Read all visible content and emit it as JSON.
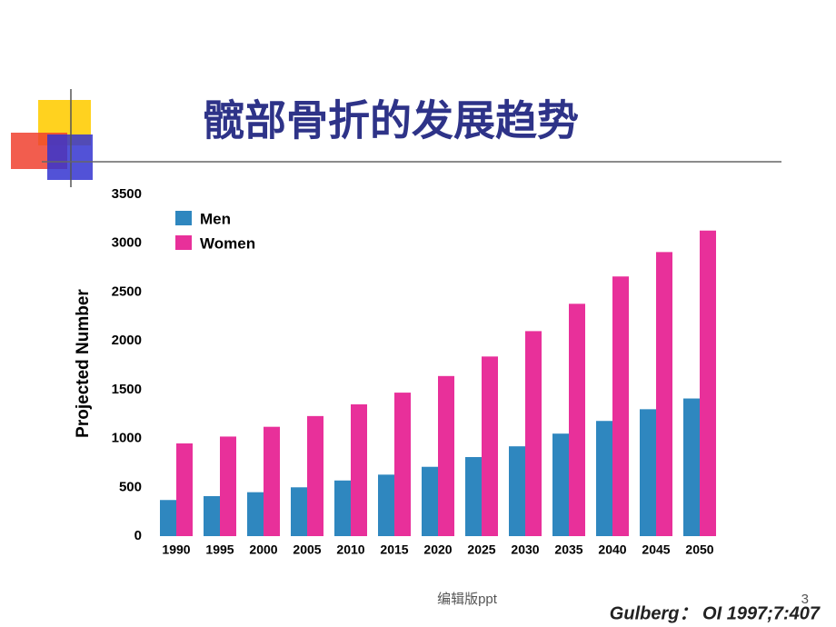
{
  "slide": {
    "title": "髋部骨折的发展趋势",
    "footer": "编辑版ppt",
    "page_number": "3",
    "citation": "Gulberg： OI 1997;7:407"
  },
  "chart_data": {
    "type": "bar",
    "y_label": "Projected Number",
    "categories": [
      "1990",
      "1995",
      "2000",
      "2005",
      "2010",
      "2015",
      "2020",
      "2025",
      "2030",
      "2035",
      "2040",
      "2045",
      "2050"
    ],
    "series": [
      {
        "name": "Men",
        "color": "#2f87bf",
        "values": [
          370,
          410,
          450,
          500,
          570,
          630,
          710,
          810,
          920,
          1050,
          1180,
          1300,
          1410
        ]
      },
      {
        "name": "Women",
        "color": "#e8309a",
        "values": [
          950,
          1020,
          1120,
          1230,
          1350,
          1470,
          1640,
          1840,
          2100,
          2380,
          2660,
          2910,
          3130
        ]
      }
    ],
    "ylim": [
      0,
      3500
    ],
    "yticks": [
      0,
      500,
      1000,
      1500,
      2000,
      2500,
      3000,
      3500
    ],
    "grid": false,
    "legend": "top-left"
  }
}
